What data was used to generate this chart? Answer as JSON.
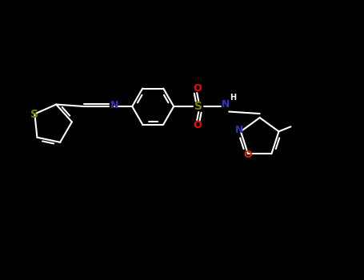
{
  "bg_color": "#000000",
  "bond_color": "#ffffff",
  "S_thiophene_color": "#808000",
  "S_sulfonyl_color": "#808000",
  "N_color": "#3333bb",
  "O_sulfonyl_color": "#ff0000",
  "O_isox_color": "#dd2200",
  "lw": 1.5,
  "font_size_atom": 8,
  "fig_w": 4.55,
  "fig_h": 3.5,
  "dpi": 100,
  "xlim": [
    0,
    9.1
  ],
  "ylim": [
    0,
    7.0
  ]
}
